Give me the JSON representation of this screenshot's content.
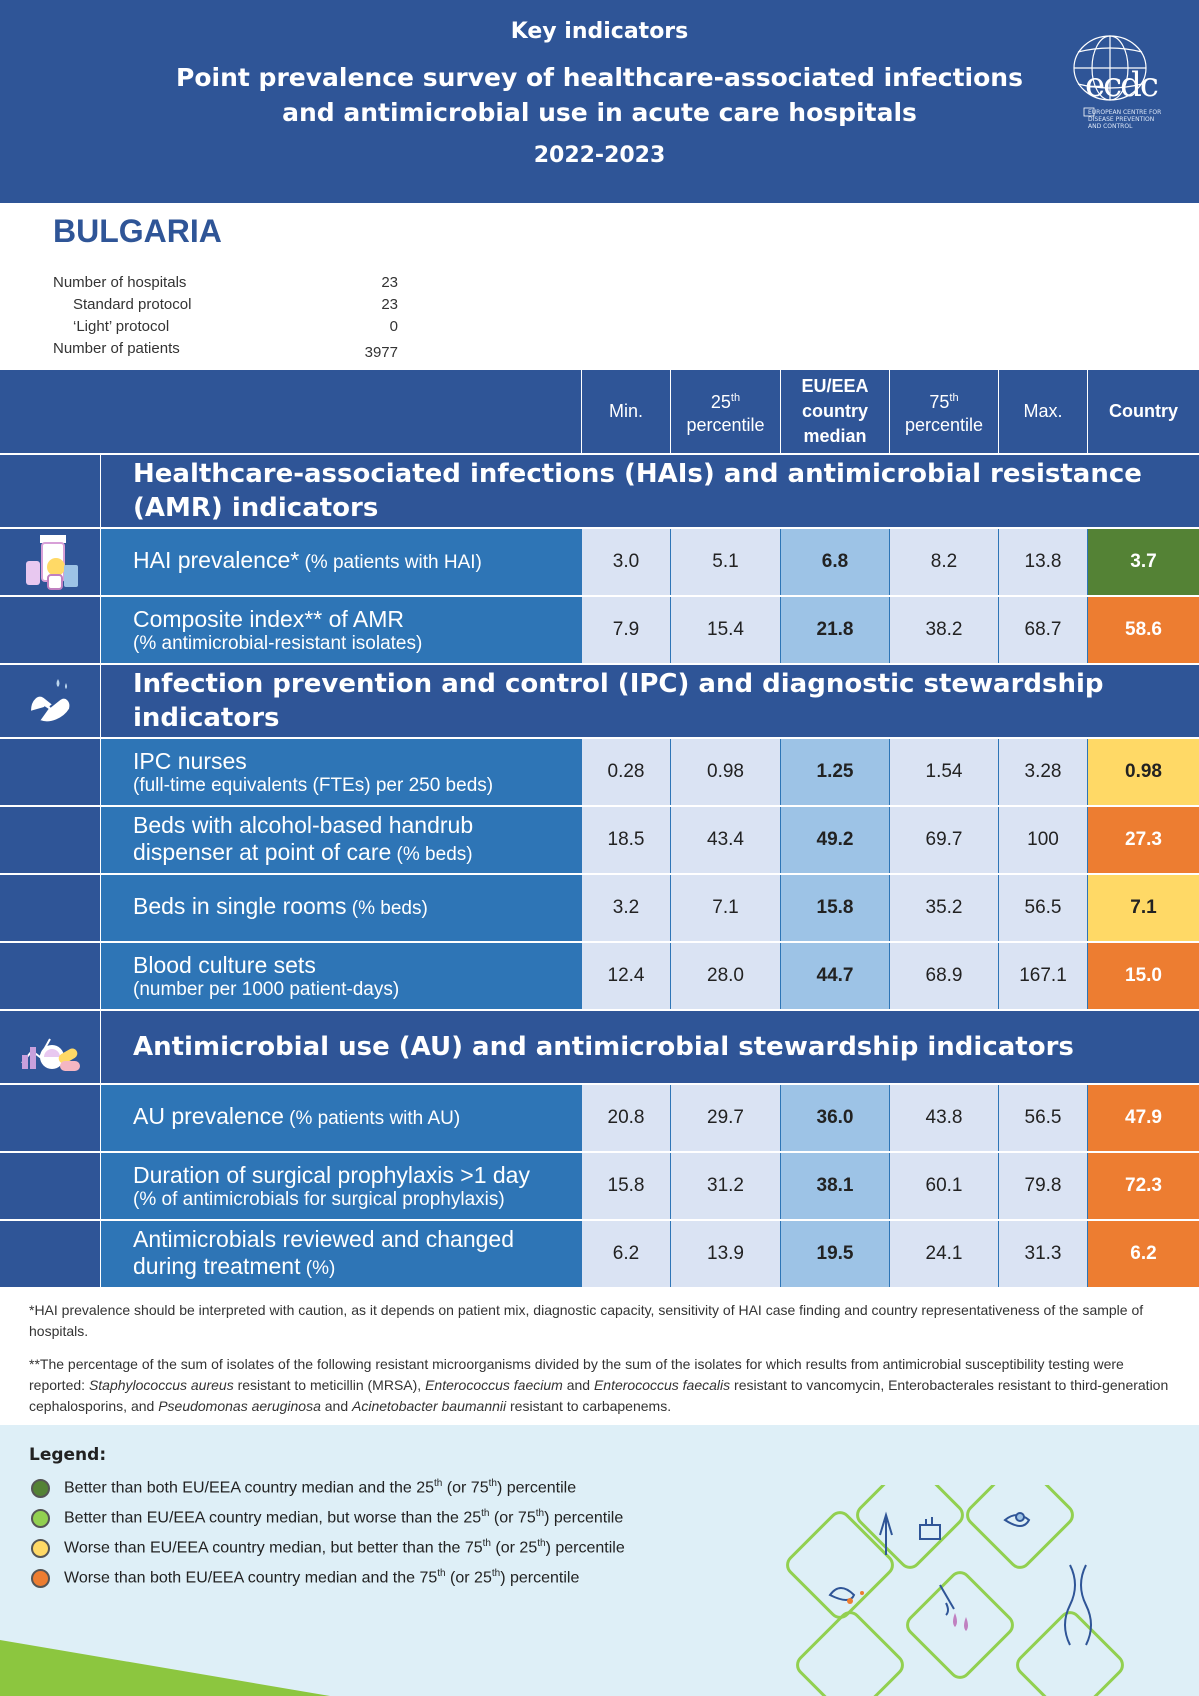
{
  "header": {
    "kicker": "Key indicators",
    "title_line1": "Point prevalence survey of healthcare-associated infections",
    "title_line2": "and antimicrobial use in acute care hospitals",
    "years": "2022-2023",
    "logo_text": "ecdc",
    "logo_subtext": "EUROPEAN CENTRE FOR DISEASE PREVENTION AND CONTROL"
  },
  "country": "BULGARIA",
  "meta": {
    "hospitals_label": "Number of hospitals",
    "hospitals_value": "23",
    "standard_label": "Standard protocol",
    "standard_value": "23",
    "light_label": "‘Light’ protocol",
    "light_value": "0",
    "patients_label": "Number of patients",
    "patients_value": "3977"
  },
  "columns": {
    "min": "Min.",
    "p25_num": "25",
    "p25_sup": "th",
    "p25_word": "percentile",
    "median_l1": "EU/EEA",
    "median_l2": "country",
    "median_l3": "median",
    "p75_num": "75",
    "p75_sup": "th",
    "p75_word": "percentile",
    "max": "Max.",
    "country": "Country"
  },
  "sections": {
    "hai": "Healthcare-associated infections (HAIs) and antimicrobial resistance (AMR) indicators",
    "ipc": "Infection prevention and control (IPC) and diagnostic stewardship indicators",
    "au": "Antimicrobial use (AU) and antimicrobial stewardship indicators"
  },
  "rows": [
    {
      "main": "HAI prevalence*",
      "sub": " (% patients with HAI)",
      "min": "3.0",
      "p25": "5.1",
      "median": "6.8",
      "p75": "8.2",
      "max": "13.8",
      "country": "3.7",
      "status": "dark-green"
    },
    {
      "main": "Composite index** of AMR",
      "sub": "(% antimicrobial-resistant isolates)",
      "min": "7.9",
      "p25": "15.4",
      "median": "21.8",
      "p75": "38.2",
      "max": "68.7",
      "country": "58.6",
      "status": "orange"
    },
    {
      "main": "IPC nurses",
      "sub": "(full-time equivalents (FTEs) per 250 beds)",
      "min": "0.28",
      "p25": "0.98",
      "median": "1.25",
      "p75": "1.54",
      "max": "3.28",
      "country": "0.98",
      "status": "yellow"
    },
    {
      "main": "Beds with alcohol-based handrub",
      "main2": "dispenser at point of care",
      "sub": " (% beds)",
      "min": "18.5",
      "p25": "43.4",
      "median": "49.2",
      "p75": "69.7",
      "max": "100",
      "country": "27.3",
      "status": "orange"
    },
    {
      "main": "Beds in single rooms",
      "sub": " (% beds)",
      "min": "3.2",
      "p25": "7.1",
      "median": "15.8",
      "p75": "35.2",
      "max": "56.5",
      "country": "7.1",
      "status": "yellow"
    },
    {
      "main": "Blood culture sets",
      "sub": "(number per 1000 patient-days)",
      "min": "12.4",
      "p25": "28.0",
      "median": "44.7",
      "p75": "68.9",
      "max": "167.1",
      "country": "15.0",
      "status": "orange"
    },
    {
      "main": "AU prevalence",
      "sub": " (% patients with AU)",
      "min": "20.8",
      "p25": "29.7",
      "median": "36.0",
      "p75": "43.8",
      "max": "56.5",
      "country": "47.9",
      "status": "orange"
    },
    {
      "main": "Duration of surgical prophylaxis >1 day",
      "sub": "(% of antimicrobials for surgical prophylaxis)",
      "min": "15.8",
      "p25": "31.2",
      "median": "38.1",
      "p75": "60.1",
      "max": "79.8",
      "country": "72.3",
      "status": "orange"
    },
    {
      "main": "Antimicrobials reviewed and changed",
      "main2": "during treatment",
      "sub": " (%)",
      "min": "6.2",
      "p25": "13.9",
      "median": "19.5",
      "p75": "24.1",
      "max": "31.3",
      "country": "6.2",
      "status": "orange"
    }
  ],
  "footnotes": {
    "fn1": "*HAI prevalence should be interpreted with caution, as it depends on patient mix, diagnostic capacity, sensitivity of HAI case finding and country representativeness of the sample of hospitals.",
    "fn2_a": "**The percentage of the sum of isolates of the following resistant microorganisms divided by the sum of the isolates for which results from antimicrobial susceptibility testing were reported: ",
    "fn2_b": "Staphylococcus aureus",
    "fn2_c": " resistant to meticillin (MRSA), ",
    "fn2_d": "Enterococcus faecium",
    "fn2_e": " and ",
    "fn2_f": "Enterococcus faecalis",
    "fn2_g": " resistant to vancomycin, Enterobacterales resistant to third-generation cephalosporins, and ",
    "fn2_h": "Pseudomonas aeruginosa",
    "fn2_i": " and ",
    "fn2_j": "Acinetobacter baumannii",
    "fn2_k": " resistant to carbapenems."
  },
  "legend": {
    "title": "Legend:",
    "items": [
      {
        "a": "Better than both EU/EEA country median and the 25",
        "s1": "th",
        "b": " (or 75",
        "s2": "th",
        "c": ") percentile",
        "color": "#548235"
      },
      {
        "a": "Better than EU/EEA country median, but worse than the 25",
        "s1": "th",
        "b": " (or 75",
        "s2": "th",
        "c": ") percentile",
        "color": "#92d050"
      },
      {
        "a": "Worse than EU/EEA country median, but better than the 75",
        "s1": "th",
        "b": " (or 25",
        "s2": "th",
        "c": ") percentile",
        "color": "#ffd966"
      },
      {
        "a": "Worse than both EU/EEA country median and the 75",
        "s1": "th",
        "b": " (or 25",
        "s2": "th",
        "c": ") percentile",
        "color": "#ed7d31"
      }
    ]
  },
  "colors": {
    "dark-green": "#548235",
    "light-green": "#92d050",
    "yellow": "#ffd966",
    "orange": "#ed7d31",
    "header-blue": "#2f5597",
    "row-blue": "#2e75b6"
  }
}
